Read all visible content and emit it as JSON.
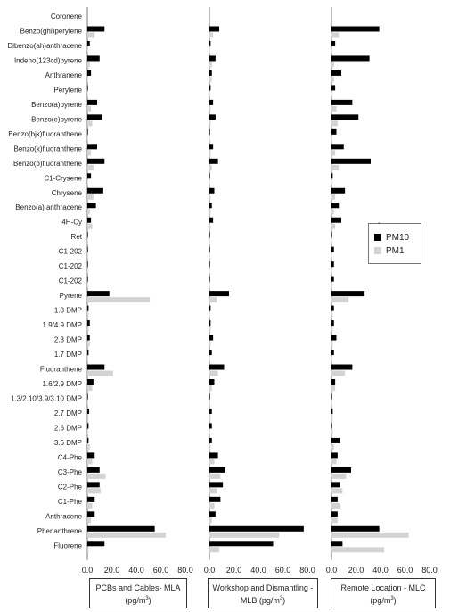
{
  "chart_data": {
    "type": "bar",
    "orientation": "horizontal",
    "categories": [
      "Coronene",
      "Benzo(ghi)perylene",
      "Dibenzo(ah)anthracene",
      "Indeno(123cd)pyrene",
      "Anthranene",
      "Perylene",
      "Benzo(a)pyrene",
      "Benzo(e)pyrene",
      "Benzo(bjk)fluoranthene",
      "Benzo(k)fluoranthene",
      "Benzo(b)fluoranthene",
      "C1-Crysene",
      "Chrysene",
      "Benzo(a) anthracene",
      "4H-Cy",
      "Ret",
      "C1-202",
      "C1-202",
      "C1-202",
      "Pyrene",
      "1.8 DMP",
      "1.9/4.9 DMP",
      "2.3 DMP",
      "1.7 DMP",
      "Fluoranthene",
      "1.6/2.9 DMP",
      "1.3/2.10/3.9/3.10 DMP",
      "2.7 DMP",
      "2.6 DMP",
      "3.6 DMP",
      "C4-Phe",
      "C3-Phe",
      "C2-Phe",
      "C1-Phe",
      "Anthracene",
      "Phenanthrene",
      "Fluorene"
    ],
    "series_names": [
      "PM10",
      "PM1"
    ],
    "colors": {
      "PM10": "#000000",
      "PM1": "#d3d3d3"
    },
    "xlim": [
      0,
      80
    ],
    "xticks": [
      "0.0",
      "20.0",
      "40.0",
      "60.0",
      "80.0"
    ],
    "legend": {
      "position": "right",
      "marker": "-",
      "entries": [
        "PM10",
        "PM1"
      ]
    },
    "panels": [
      {
        "xlabel_line1": "PCBs and Cables- MLA",
        "xlabel_line2": "(pg/m",
        "xlabel_sup": "3",
        "xlabel_end": ")",
        "PM10": [
          0,
          14,
          2,
          10,
          3,
          0.5,
          8,
          12,
          0.5,
          8,
          14,
          3,
          13,
          7,
          3,
          0.5,
          0.5,
          0.5,
          0.5,
          18,
          1,
          2,
          2,
          1,
          14,
          5,
          0.5,
          1.5,
          1,
          1,
          6,
          10,
          10,
          6,
          6,
          55,
          14
        ],
        "PM1": [
          0,
          6,
          0.5,
          2,
          0.5,
          0.5,
          3,
          4,
          0.5,
          3,
          5,
          0.5,
          5,
          2,
          4,
          0.5,
          0.5,
          0.5,
          0.5,
          51,
          1,
          1,
          2,
          0.5,
          21,
          4,
          0.5,
          1,
          0.5,
          2,
          4,
          15,
          11,
          4,
          3,
          64,
          1
        ]
      },
      {
        "xlabel_line1": "Workshop and Dismantling -",
        "xlabel_line2": "MLB (pg/m",
        "xlabel_sup": "3",
        "xlabel_end": ")",
        "PM10": [
          0,
          8,
          1,
          5,
          2,
          1,
          3,
          5,
          0.5,
          3,
          7,
          0.5,
          4,
          2,
          3,
          0.5,
          0.5,
          0.5,
          0.5,
          16,
          1,
          1,
          3,
          2,
          12,
          4,
          0.5,
          2,
          2,
          2,
          7,
          13,
          11,
          9,
          5,
          77,
          52
        ],
        "PM1": [
          0,
          3,
          0.5,
          2,
          2,
          0.5,
          1,
          1,
          0.5,
          1,
          2,
          0.5,
          1,
          1,
          1,
          0.5,
          0.5,
          0.5,
          0.5,
          6,
          0.5,
          1,
          1,
          0.5,
          7,
          2,
          0.5,
          1,
          0.5,
          1,
          4,
          9,
          6,
          4,
          2,
          57,
          8
        ]
      },
      {
        "xlabel_line1": "Remote Location - MLC",
        "xlabel_line2": "(pg/m",
        "xlabel_sup": "3",
        "xlabel_end": ")",
        "PM10": [
          0,
          39,
          3,
          31,
          8,
          3,
          17,
          22,
          4,
          10,
          32,
          1,
          11,
          6,
          8,
          0.5,
          2,
          2,
          2,
          27,
          2,
          2,
          4,
          2,
          17,
          3,
          0.5,
          1,
          0.5,
          7,
          5,
          16,
          7,
          5,
          5,
          39,
          9
        ],
        "PM1": [
          0,
          6,
          0.5,
          2,
          2,
          0.5,
          4,
          5,
          0.5,
          3,
          6,
          0.5,
          3,
          2,
          3,
          0.5,
          0.5,
          0.5,
          0.5,
          14,
          1,
          1,
          1,
          0.5,
          11,
          3,
          0.5,
          1,
          1,
          2,
          4,
          12,
          9,
          7,
          5,
          63,
          43
        ]
      }
    ]
  }
}
